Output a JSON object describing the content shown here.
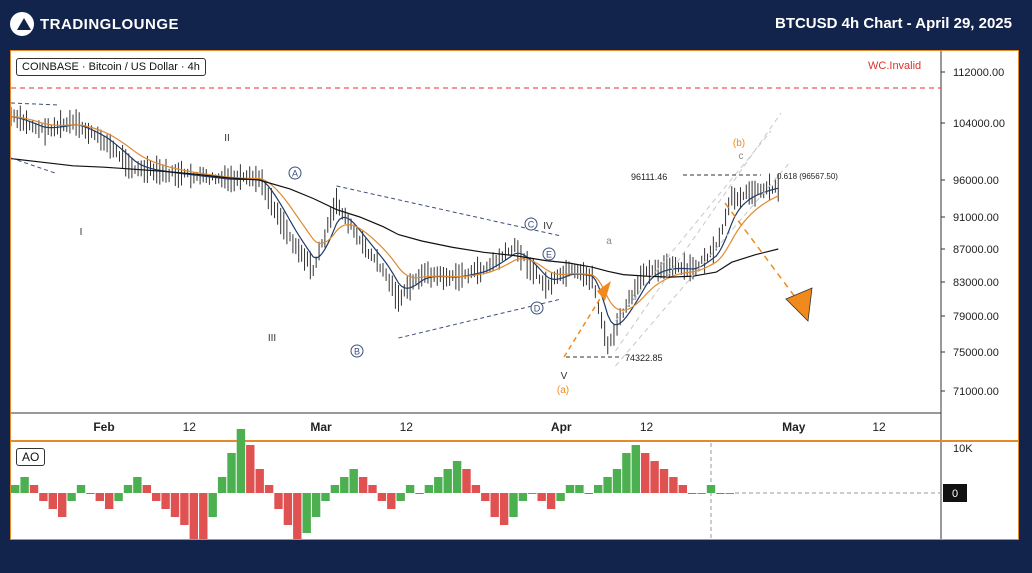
{
  "header": {
    "brand": "TradingLounge",
    "title": "BTCUSD 4h Chart - April 29, 2025"
  },
  "legend": {
    "symbol": "COINBASE · Bitcoin / US Dollar · 4h",
    "invalid_label": "WC.Invalid",
    "indicator": "AO"
  },
  "colors": {
    "background": "#13244c",
    "panel_border": "#e58a2a",
    "candle": "#333333",
    "ema_fast": "#1f3b66",
    "ema_slow": "#e08a2f",
    "ma_long": "#111111",
    "ao_up": "#4caf50",
    "ao_down": "#e05252",
    "projection": "#f08a1e",
    "invalid_line": "#e0302a"
  },
  "chart_data": [
    {
      "type": "line",
      "name": "price",
      "x_ticks": [
        "Feb",
        "12",
        "Mar",
        "12",
        "Apr",
        "12",
        "May",
        "12"
      ],
      "y_ticks": [
        112000,
        104000,
        96000,
        91000,
        87000,
        83000,
        79000,
        75000,
        71000
      ],
      "y_tick_labels": [
        "112000.00",
        "104000.00",
        "96000.00",
        "91000.00",
        "87000.00",
        "83000.00",
        "79000.00",
        "75000.00",
        "71000.00"
      ],
      "x": [
        "2025-01-20",
        "2025-01-24",
        "2025-01-28",
        "2025-02-01",
        "2025-02-05",
        "2025-02-09",
        "2025-02-13",
        "2025-02-17",
        "2025-02-21",
        "2025-02-25",
        "2025-02-28",
        "2025-03-03",
        "2025-03-06",
        "2025-03-09",
        "2025-03-11",
        "2025-03-14",
        "2025-03-18",
        "2025-03-22",
        "2025-03-26",
        "2025-03-30",
        "2025-04-02",
        "2025-04-05",
        "2025-04-07",
        "2025-04-09",
        "2025-04-12",
        "2025-04-15",
        "2025-04-18",
        "2025-04-21",
        "2025-04-23",
        "2025-04-26",
        "2025-04-29"
      ],
      "series": [
        {
          "name": "close",
          "values": [
            105000,
            103000,
            104000,
            101500,
            97500,
            97000,
            96500,
            96000,
            96200,
            88500,
            84500,
            93000,
            88000,
            84500,
            81000,
            84000,
            83500,
            84500,
            87200,
            82500,
            84300,
            83500,
            75500,
            79500,
            84500,
            84800,
            84500,
            87000,
            93500,
            94500,
            95200
          ]
        },
        {
          "name": "ma_long",
          "values": [
            99000,
            98500,
            98000,
            97800,
            97500,
            97200,
            96800,
            96300,
            96000,
            94800,
            93500,
            92000,
            91000,
            89800,
            88800,
            88000,
            87200,
            86600,
            86200,
            85600,
            85300,
            84800,
            84300,
            83900,
            83700,
            83600,
            83700,
            84200,
            85400,
            86300,
            87000
          ]
        }
      ],
      "annotations": {
        "wave_labels": [
          "I",
          "II",
          "III",
          "IV",
          "V",
          "(a)",
          "a",
          "b",
          "c",
          "(b)"
        ],
        "circle_labels": [
          "A",
          "B",
          "C",
          "D",
          "E"
        ],
        "price_marks": [
          "96111.46",
          "74322.85",
          "0.618 (96567.50)"
        ],
        "invalid_level": 109500
      }
    },
    {
      "type": "bar",
      "name": "AO",
      "y_tick_labels": [
        "10K",
        "0"
      ],
      "values": [
        1,
        2,
        1,
        -1,
        -2,
        -3,
        -1,
        1,
        0,
        -1,
        -2,
        -1,
        1,
        2,
        1,
        -1,
        -2,
        -3,
        -4,
        -6,
        -7,
        -3,
        2,
        5,
        8,
        6,
        3,
        1,
        -2,
        -4,
        -6,
        -5,
        -3,
        -1,
        1,
        2,
        3,
        2,
        1,
        -1,
        -2,
        -1,
        1,
        0,
        1,
        2,
        3,
        4,
        3,
        1,
        -1,
        -3,
        -4,
        -3,
        -1,
        0,
        -1,
        -2,
        -1,
        1,
        1,
        0,
        1,
        2,
        3,
        5,
        6,
        5,
        4,
        3,
        2,
        1,
        0,
        0,
        1,
        0,
        0
      ]
    }
  ]
}
